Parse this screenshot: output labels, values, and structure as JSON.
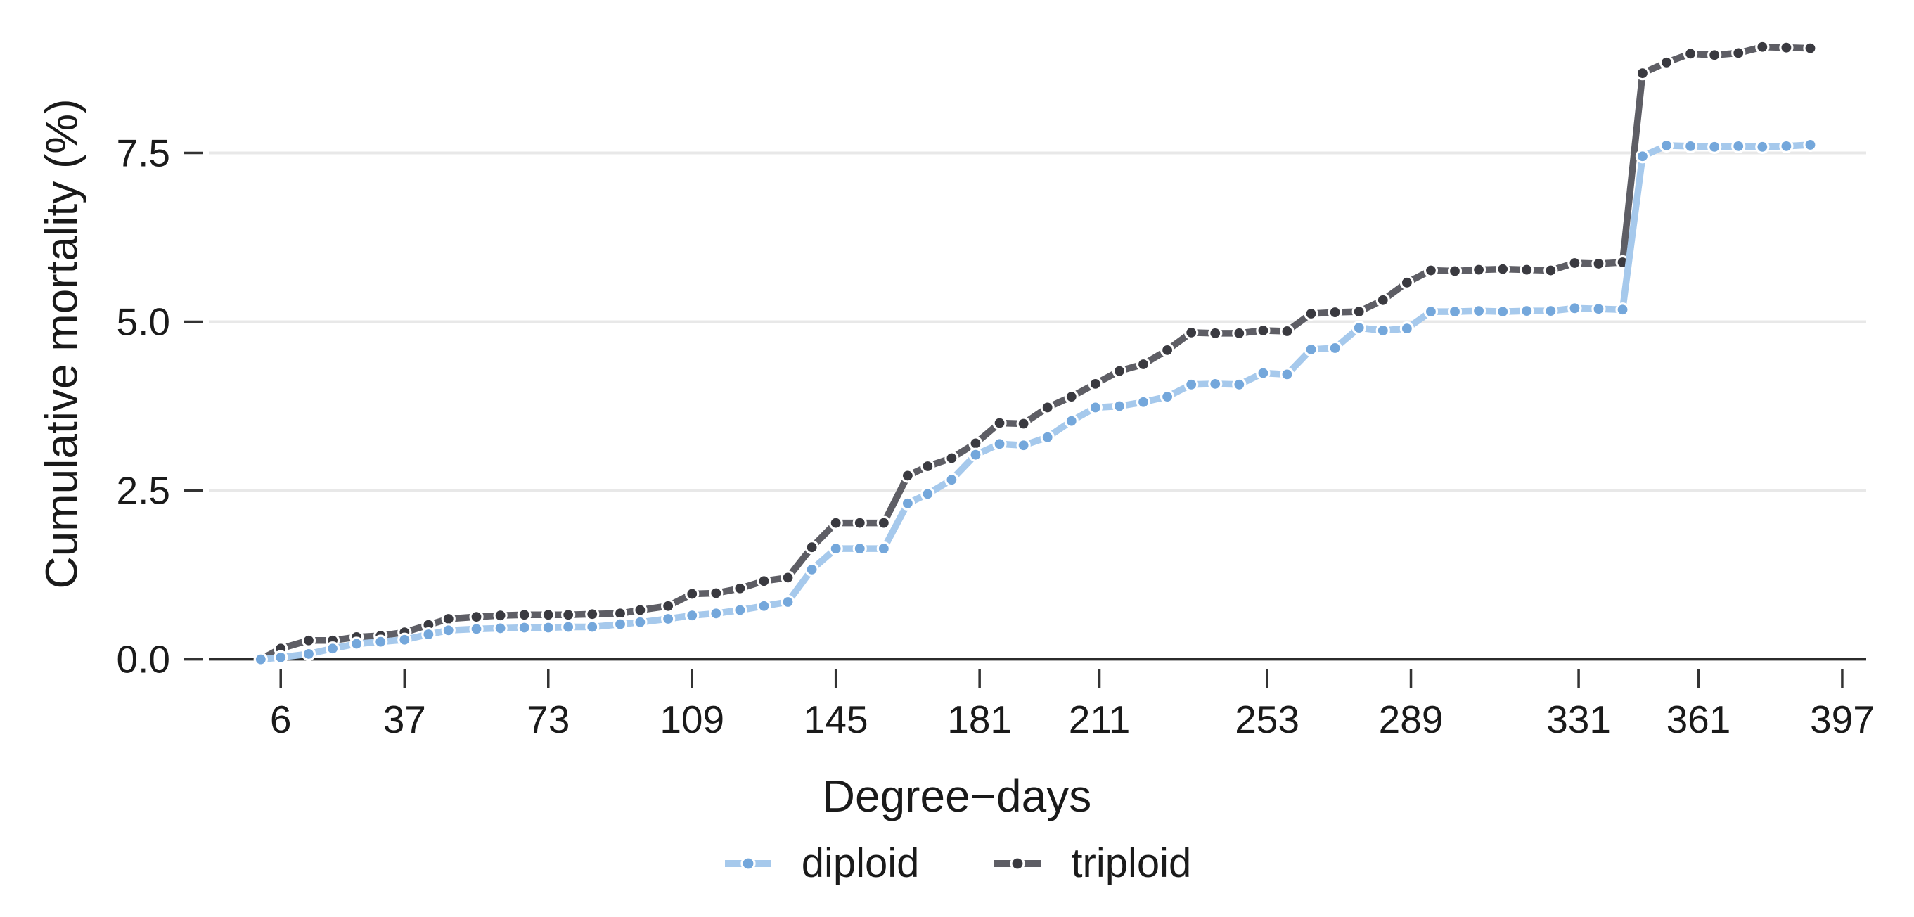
{
  "figure": {
    "background": "#ffffff",
    "text_color": "#1a1a1a"
  },
  "chart_data": {
    "type": "line",
    "title": "",
    "xlabel": "Degree−days",
    "ylabel": "Cumulative mortality (%)",
    "legend_position": "bottom-center",
    "grid": "horizontal-only",
    "line_style": "thick line with white-haloed round markers (dashed appearance)",
    "xlim": [
      -12,
      403
    ],
    "ylim": [
      -0.15,
      9.39
    ],
    "x_ticks": [
      6,
      37,
      73,
      109,
      145,
      181,
      211,
      253,
      289,
      331,
      361,
      397
    ],
    "y_ticks": [
      {
        "value": 0.0,
        "label": "0.0"
      },
      {
        "value": 2.5,
        "label": "2.5"
      },
      {
        "value": 5.0,
        "label": "5.0"
      },
      {
        "value": 7.5,
        "label": "7.5"
      }
    ],
    "colors": {
      "grid": "#e8e8e8",
      "axis_line": "#2b2b2b",
      "tick": "#333333",
      "text": "#1a1a1a"
    },
    "series": [
      {
        "name": "diploid",
        "marker_color": "#74a7db",
        "line_color": "#a6c9ec",
        "x": [
          1,
          6,
          13,
          19,
          25,
          31,
          37,
          43,
          48,
          55,
          61,
          67,
          73,
          78,
          84,
          91,
          96,
          103,
          109,
          115,
          121,
          127,
          133,
          139,
          145,
          151,
          157,
          163,
          168,
          174,
          180,
          186,
          192,
          198,
          204,
          210,
          216,
          222,
          228,
          234,
          240,
          246,
          252,
          258,
          264,
          270,
          276,
          282,
          288,
          294,
          300,
          306,
          312,
          318,
          324,
          330,
          336,
          342,
          347,
          353,
          359,
          365,
          371,
          377,
          383,
          389
        ],
        "y": [
          0.0,
          0.03,
          0.08,
          0.16,
          0.23,
          0.26,
          0.29,
          0.37,
          0.43,
          0.45,
          0.46,
          0.47,
          0.47,
          0.48,
          0.48,
          0.52,
          0.55,
          0.6,
          0.65,
          0.68,
          0.73,
          0.79,
          0.85,
          1.33,
          1.64,
          1.64,
          1.64,
          2.31,
          2.45,
          2.66,
          3.03,
          3.19,
          3.17,
          3.29,
          3.53,
          3.73,
          3.75,
          3.81,
          3.89,
          4.07,
          4.08,
          4.07,
          4.24,
          4.22,
          4.59,
          4.61,
          4.91,
          4.87,
          4.9,
          5.15,
          5.15,
          5.16,
          5.15,
          5.16,
          5.16,
          5.2,
          5.19,
          5.18,
          7.45,
          7.61,
          7.6,
          7.59,
          7.6,
          7.59,
          7.6,
          7.62
        ]
      },
      {
        "name": "triploid",
        "marker_color": "#3a3a40",
        "line_color": "#5e5e65",
        "x": [
          1,
          6,
          13,
          19,
          25,
          31,
          37,
          43,
          48,
          55,
          61,
          67,
          73,
          78,
          84,
          91,
          96,
          103,
          109,
          115,
          121,
          127,
          133,
          139,
          145,
          151,
          157,
          163,
          168,
          174,
          180,
          186,
          192,
          198,
          204,
          210,
          216,
          222,
          228,
          234,
          240,
          246,
          252,
          258,
          264,
          270,
          276,
          282,
          288,
          294,
          300,
          306,
          312,
          318,
          324,
          330,
          336,
          342,
          347,
          353,
          359,
          365,
          371,
          377,
          383,
          389
        ],
        "y": [
          0.0,
          0.16,
          0.28,
          0.28,
          0.33,
          0.35,
          0.4,
          0.51,
          0.6,
          0.63,
          0.65,
          0.66,
          0.66,
          0.66,
          0.67,
          0.68,
          0.73,
          0.79,
          0.97,
          0.98,
          1.05,
          1.16,
          1.21,
          1.66,
          2.02,
          2.02,
          2.02,
          2.72,
          2.86,
          2.98,
          3.2,
          3.5,
          3.49,
          3.73,
          3.89,
          4.08,
          4.27,
          4.37,
          4.58,
          4.84,
          4.83,
          4.83,
          4.87,
          4.86,
          5.12,
          5.14,
          5.15,
          5.32,
          5.58,
          5.76,
          5.75,
          5.77,
          5.78,
          5.77,
          5.76,
          5.87,
          5.86,
          5.88,
          8.68,
          8.84,
          8.97,
          8.95,
          8.98,
          9.07,
          9.06,
          9.05
        ]
      }
    ]
  }
}
